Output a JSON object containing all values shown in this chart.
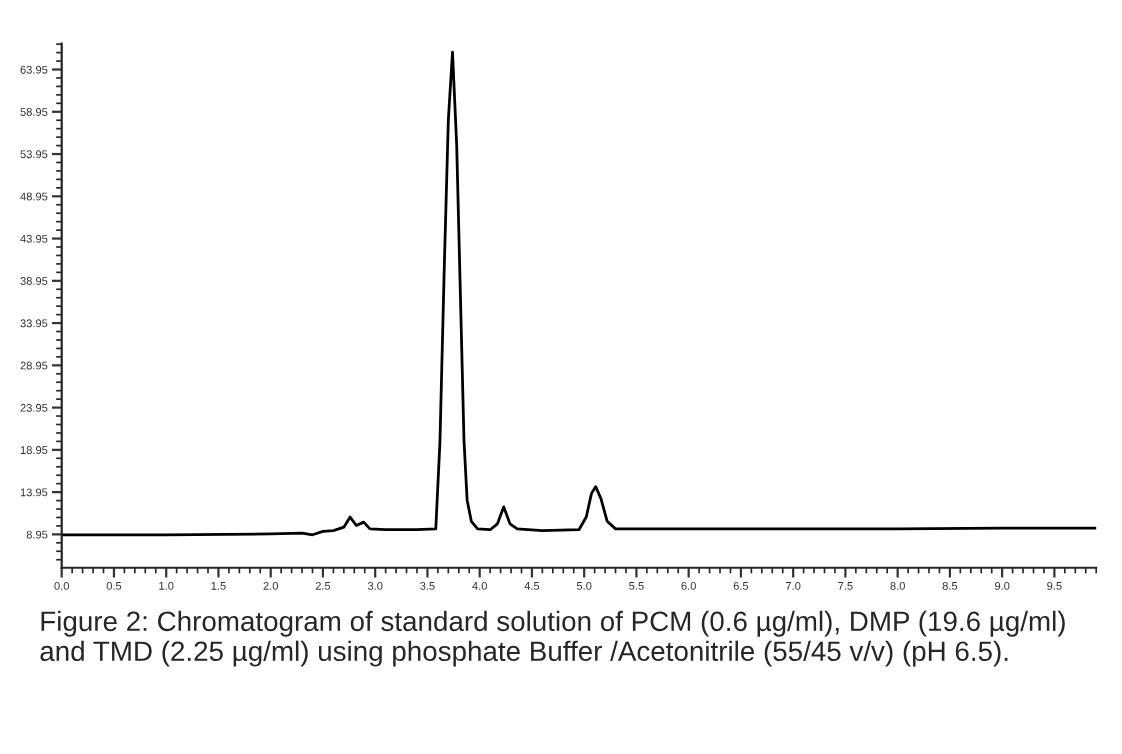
{
  "chart_data": {
    "type": "line",
    "x": [
      0.0,
      1.0,
      2.0,
      2.3,
      2.4,
      2.5,
      2.6,
      2.7,
      2.76,
      2.82,
      2.89,
      2.95,
      3.1,
      3.4,
      3.58,
      3.62,
      3.66,
      3.7,
      3.74,
      3.78,
      3.82,
      3.85,
      3.88,
      3.92,
      3.98,
      4.1,
      4.17,
      4.23,
      4.29,
      4.36,
      4.6,
      4.95,
      5.02,
      5.07,
      5.11,
      5.16,
      5.22,
      5.3,
      6.0,
      7.0,
      8.0,
      9.0,
      9.9
    ],
    "series": [
      {
        "color": "#000000",
        "values": [
          8.9,
          8.9,
          9.0,
          9.1,
          8.9,
          9.3,
          9.4,
          9.8,
          11.0,
          10.0,
          10.4,
          9.6,
          9.5,
          9.5,
          9.6,
          20,
          40,
          58,
          66.0,
          55,
          35,
          20,
          13,
          10.5,
          9.6,
          9.5,
          10.2,
          12.2,
          10.2,
          9.6,
          9.4,
          9.5,
          11,
          13.8,
          14.6,
          13.2,
          10.5,
          9.6,
          9.6,
          9.6,
          9.6,
          9.7,
          9.7
        ]
      }
    ],
    "xlim": [
      0,
      9.9
    ],
    "ylim": [
      5,
      67
    ],
    "xticks": [
      {
        "value": 0,
        "label": "0.0"
      },
      {
        "value": 0.5,
        "label": "0.5"
      },
      {
        "value": 1,
        "label": "1.0"
      },
      {
        "value": 1.5,
        "label": "1.5"
      },
      {
        "value": 2,
        "label": "2.0"
      },
      {
        "value": 2.5,
        "label": "2.5"
      },
      {
        "value": 3,
        "label": "3.0"
      },
      {
        "value": 3.5,
        "label": "3.5"
      },
      {
        "value": 4,
        "label": "4.0"
      },
      {
        "value": 4.5,
        "label": "4.5"
      },
      {
        "value": 5,
        "label": "5.0"
      },
      {
        "value": 5.5,
        "label": "5.5"
      },
      {
        "value": 6,
        "label": "6.0"
      },
      {
        "value": 6.5,
        "label": "6.5"
      },
      {
        "value": 7,
        "label": "7.0"
      },
      {
        "value": 7.5,
        "label": "7.5"
      },
      {
        "value": 8,
        "label": "8.0"
      },
      {
        "value": 8.5,
        "label": "8.5"
      },
      {
        "value": 9,
        "label": "9.0"
      },
      {
        "value": 9.5,
        "label": "9.5"
      }
    ],
    "yticks": [
      8.95,
      13.95,
      18.95,
      23.95,
      28.95,
      33.95,
      38.95,
      43.95,
      48.95,
      53.95,
      58.95,
      63.95
    ],
    "grid": false,
    "line_style": "solid",
    "marker": "none",
    "annotations": [
      "Figure 2: Chromatogram of standard solution of PCM (0.6 µg/ml), DMP (19.6 µg/ml) and TMD (2.25 µg/ml) using phosphate Buffer /Acetonitrile (55/45 v/v) (pH 6.5)."
    ]
  }
}
